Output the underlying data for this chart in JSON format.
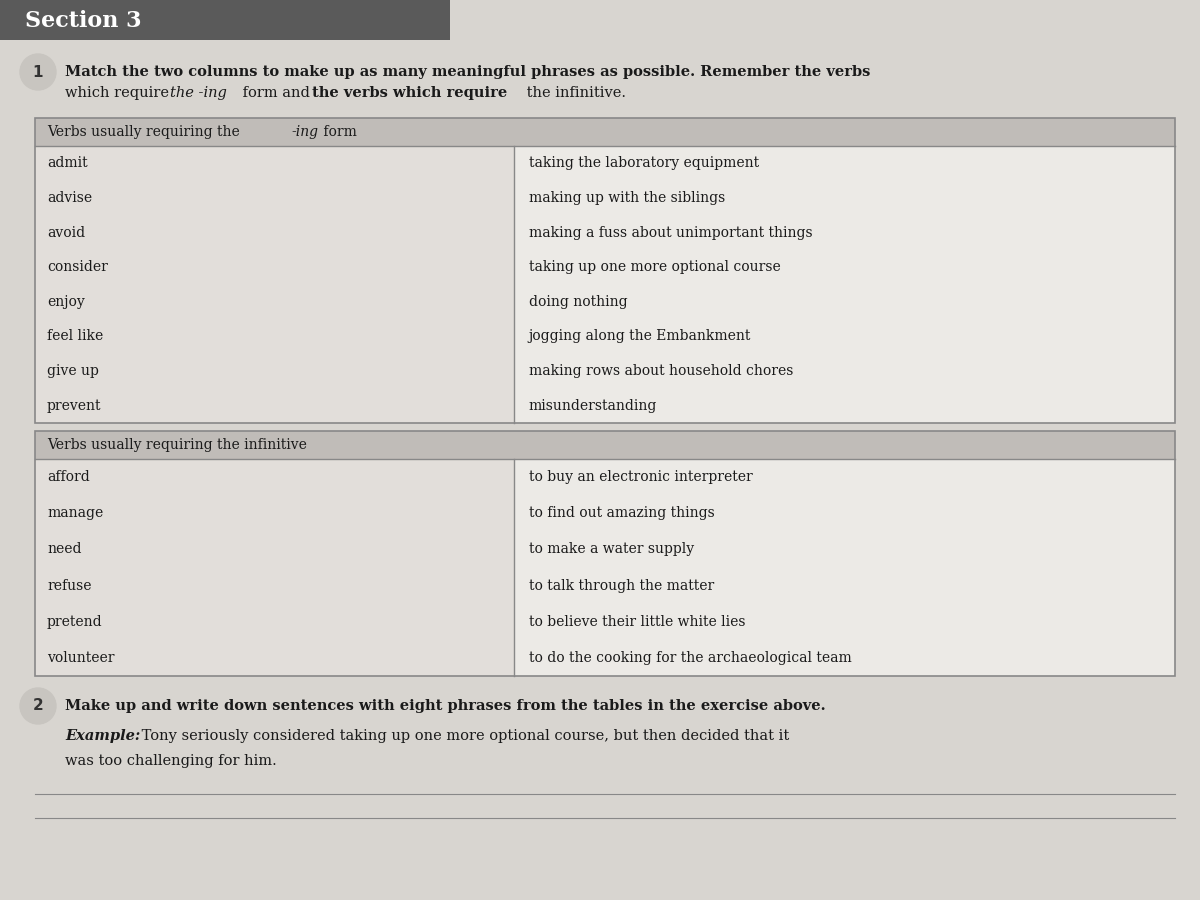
{
  "page_bg": "#d8d5d0",
  "section_header": "Section 3",
  "section_header_bg": "#5a5a5a",
  "section_header_color": "#ffffff",
  "q1_number": "1",
  "q1_text_bold": "Match the two columns to make up as many meaningful phrases as possible. Remember the verbs",
  "table1_header_pre": "Verbs usually requiring the ",
  "table1_header_italic": "-ing",
  "table1_header_post": " form",
  "table1_col1": [
    "admit",
    "advise",
    "avoid",
    "consider",
    "enjoy",
    "feel like",
    "give up",
    "prevent"
  ],
  "table1_col2": [
    "taking the laboratory equipment",
    "making up with the siblings",
    "making a fuss about unimportant things",
    "taking up one more optional course",
    "doing nothing",
    "jogging along the Embankment",
    "making rows about household chores",
    "misunderstanding"
  ],
  "table2_header": "Verbs usually requiring the infinitive",
  "table2_col1": [
    "afford",
    "manage",
    "need",
    "refuse",
    "pretend",
    "volunteer"
  ],
  "table2_col2": [
    "to buy an electronic interpreter",
    "to find out amazing things",
    "to make a water supply",
    "to talk through the matter",
    "to believe their little white lies",
    "to do the cooking for the archaeological team"
  ],
  "q2_number": "2",
  "q2_text_bold": "Make up and write down sentences with eight phrases from the tables in the exercise above.",
  "q2_example_label": "Example:",
  "q2_example_line1": " Tony seriously considered taking up one more optional course, but then decided that it",
  "q2_example_line2": "was too challenging for him.",
  "table_border_color": "#888888",
  "table_header_bg": "#c0bcb8",
  "table_cell_left_bg": "#e2deda",
  "table_cell_right_bg": "#eceae6"
}
